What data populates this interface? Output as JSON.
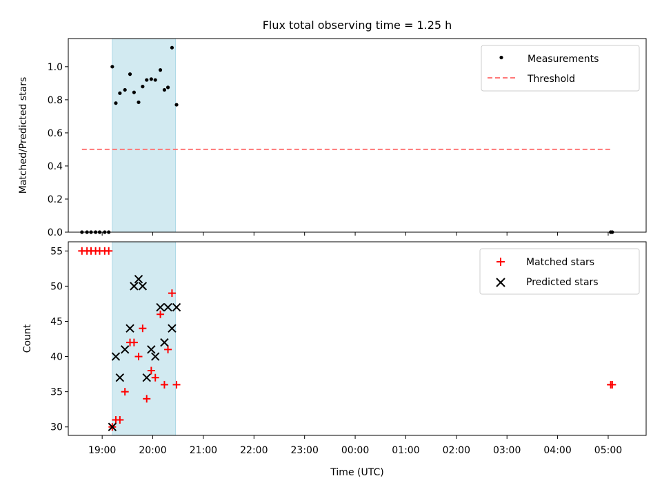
{
  "figure": {
    "title": "Flux total observing time = 1.25 h"
  },
  "colors": {
    "shade": "#add8e6",
    "threshold": "#ff7777",
    "matched": "#ff0000",
    "predicted": "#000000",
    "measurement": "#000000"
  },
  "chart_data": [
    {
      "type": "scatter",
      "panel": "top",
      "ylabel": "Matched/Predicted stars",
      "xlabel": "",
      "xlim": [
        18.33,
        29.75
      ],
      "ylim": [
        0.0,
        1.17
      ],
      "yticks": [
        0.0,
        0.2,
        0.4,
        0.6,
        0.8,
        1.0
      ],
      "ytick_labels": [
        "0.0",
        "0.2",
        "0.4",
        "0.6",
        "0.8",
        "1.0"
      ],
      "shaded_span": [
        19.2,
        20.45
      ],
      "legend": {
        "position": "top-right",
        "entries": [
          {
            "key": "measurements",
            "label": "Measurements"
          },
          {
            "key": "threshold",
            "label": "Threshold"
          }
        ]
      },
      "series": [
        {
          "name": "Measurements",
          "key": "measurements",
          "x": [
            18.6,
            18.7,
            18.78,
            18.87,
            18.95,
            19.05,
            19.13,
            19.2,
            19.27,
            19.35,
            19.45,
            19.55,
            19.63,
            19.72,
            19.8,
            19.88,
            19.97,
            20.05,
            20.15,
            20.23,
            20.3,
            20.38,
            20.47,
            29.05,
            29.08
          ],
          "y": [
            0.0,
            0.0,
            0.0,
            0.0,
            0.0,
            0.0,
            0.0,
            1.0,
            0.78,
            0.84,
            0.86,
            0.955,
            0.845,
            0.785,
            0.88,
            0.92,
            0.925,
            0.92,
            0.98,
            0.86,
            0.875,
            1.115,
            0.77,
            0.0,
            0.0
          ]
        },
        {
          "name": "Threshold",
          "key": "threshold",
          "x": [
            18.6,
            29.05
          ],
          "y": [
            0.5,
            0.5
          ]
        }
      ]
    },
    {
      "type": "scatter",
      "panel": "bottom",
      "ylabel": "Count",
      "xlabel": "Time (UTC)",
      "xlim": [
        18.33,
        29.75
      ],
      "ylim": [
        28.8,
        56.3
      ],
      "yticks": [
        30,
        35,
        40,
        45,
        50,
        55
      ],
      "ytick_labels": [
        "30",
        "35",
        "40",
        "45",
        "50",
        "55"
      ],
      "xticks": [
        19,
        20,
        21,
        22,
        23,
        24,
        25,
        26,
        27,
        28,
        29
      ],
      "xtick_labels": [
        "19:00",
        "20:00",
        "21:00",
        "22:00",
        "23:00",
        "00:00",
        "01:00",
        "02:00",
        "03:00",
        "04:00",
        "05:00"
      ],
      "shaded_span": [
        19.2,
        20.45
      ],
      "legend": {
        "position": "top-right",
        "entries": [
          {
            "key": "matched",
            "label": "Matched stars"
          },
          {
            "key": "predicted",
            "label": "Predicted stars"
          }
        ]
      },
      "series": [
        {
          "name": "Matched stars",
          "key": "matched",
          "x": [
            18.6,
            18.7,
            18.78,
            18.87,
            18.95,
            19.05,
            19.13,
            19.2,
            19.27,
            19.35,
            19.45,
            19.55,
            19.63,
            19.72,
            19.8,
            19.88,
            19.97,
            20.05,
            20.15,
            20.23,
            20.3,
            20.38,
            20.47,
            29.05,
            29.08
          ],
          "y": [
            55,
            55,
            55,
            55,
            55,
            55,
            55,
            30,
            31,
            31,
            35,
            42,
            42,
            40,
            44,
            34,
            38,
            37,
            46,
            36,
            41,
            49,
            36,
            36,
            36
          ]
        },
        {
          "name": "Predicted stars",
          "key": "predicted",
          "x": [
            19.2,
            19.27,
            19.35,
            19.45,
            19.55,
            19.63,
            19.72,
            19.8,
            19.88,
            19.97,
            20.05,
            20.15,
            20.23,
            20.3,
            20.38,
            20.47
          ],
          "y": [
            30,
            40,
            37,
            41,
            44,
            50,
            51,
            50,
            37,
            41,
            40,
            47,
            42,
            47,
            44,
            47
          ]
        }
      ]
    }
  ]
}
